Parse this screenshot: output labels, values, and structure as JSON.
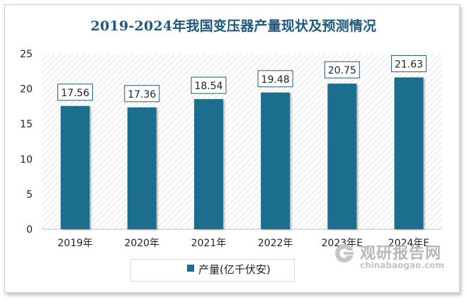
{
  "chart_data": {
    "type": "bar",
    "title": "2019-2024年我国变压器产量现状及预测情况",
    "categories": [
      "2019年",
      "2020年",
      "2021年",
      "2022年",
      "2023年E",
      "2024年E"
    ],
    "series": [
      {
        "name": "产量(亿千伏安)",
        "values": [
          17.56,
          17.36,
          18.54,
          19.48,
          20.75,
          21.63
        ],
        "color": "#1f6e8f"
      }
    ],
    "data_labels": [
      "17.56",
      "17.36",
      "18.54",
      "19.48",
      "20.75",
      "21.63"
    ],
    "y_ticks": [
      "0",
      "5",
      "10",
      "15",
      "20",
      "25"
    ],
    "ylim": [
      0,
      25
    ],
    "xlabel": "",
    "ylabel": "",
    "legend_position": "bottom",
    "grid": false,
    "plot_background": "diagonal-hatch",
    "colors": {
      "bar": "#1f6e8f",
      "title": "#1f5a7c",
      "label_border": "#1f5a7c"
    }
  },
  "watermark": {
    "brand": "观研报告网",
    "url": "chinabaogao.com"
  }
}
